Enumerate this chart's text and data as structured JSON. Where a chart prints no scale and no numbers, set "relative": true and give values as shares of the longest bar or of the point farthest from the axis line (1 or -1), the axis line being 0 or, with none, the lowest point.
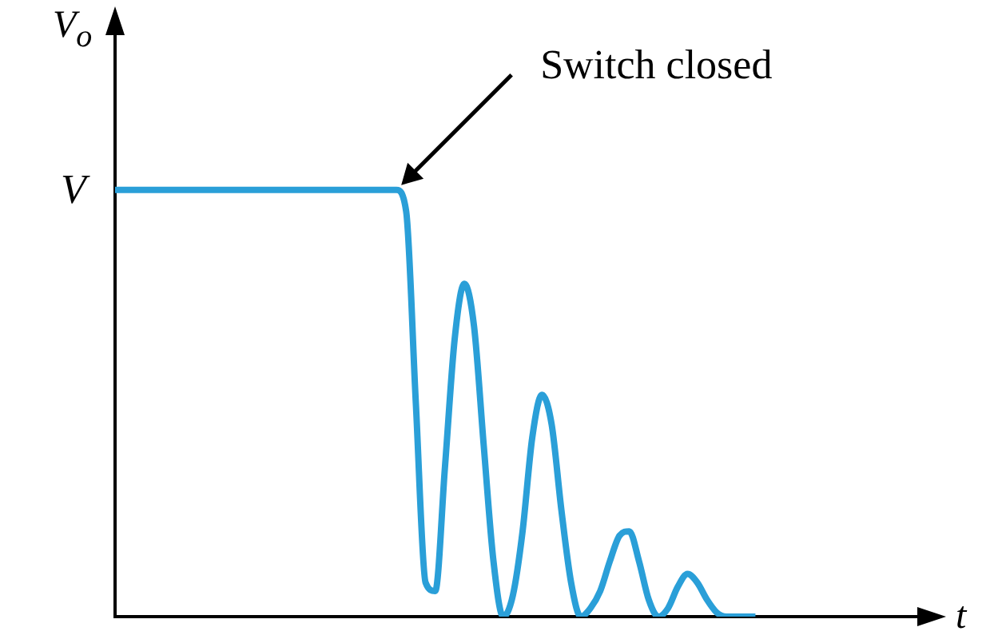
{
  "chart_data": {
    "type": "line",
    "relative": true,
    "xlabel": "t",
    "ylabel": "V$_{o}$",
    "color": "#2a9fd8",
    "annotations": [
      "V",
      "Switch closed"
    ],
    "categories": [
      null,
      null,
      null,
      null,
      null,
      null,
      null,
      null,
      null,
      null,
      null,
      null,
      null,
      null,
      null,
      null,
      null,
      null,
      null,
      null,
      null,
      null,
      null,
      null,
      null,
      null,
      null,
      null,
      null,
      null,
      null,
      null,
      null,
      null,
      null,
      null,
      null,
      null,
      null,
      null,
      null,
      null,
      null,
      null,
      null,
      null,
      null,
      null,
      null,
      null,
      null,
      null,
      null,
      null,
      null,
      null,
      null,
      null,
      null,
      null,
      null,
      null,
      null,
      null,
      null,
      null,
      null,
      null,
      null,
      null,
      null,
      null,
      null,
      null,
      null,
      null,
      null,
      null,
      null,
      null,
      null,
      null,
      null,
      null,
      null
    ],
    "values": [
      1,
      1,
      1,
      1,
      1,
      1,
      1,
      1,
      1,
      1,
      1,
      1,
      1,
      1,
      1,
      1,
      1,
      1,
      1,
      1,
      1,
      1,
      1,
      1,
      1,
      1,
      1,
      1,
      1,
      1,
      0.95,
      0.5,
      0.08,
      0.06,
      0.35,
      0.65,
      0.78,
      0.68,
      0.4,
      0.13,
      0,
      0.05,
      0.2,
      0.42,
      0.52,
      0.45,
      0.25,
      0.08,
      0,
      0.02,
      0.06,
      0.13,
      0.19,
      0.2,
      0.13,
      0.04,
      0,
      0.02,
      0.07,
      0.1,
      0.08,
      0.04,
      0.01,
      0,
      0,
      0,
      0,
      null,
      null,
      null,
      null,
      null,
      null,
      null,
      null,
      null,
      null,
      null,
      null,
      null,
      null,
      null,
      null,
      null,
      null
    ]
  }
}
